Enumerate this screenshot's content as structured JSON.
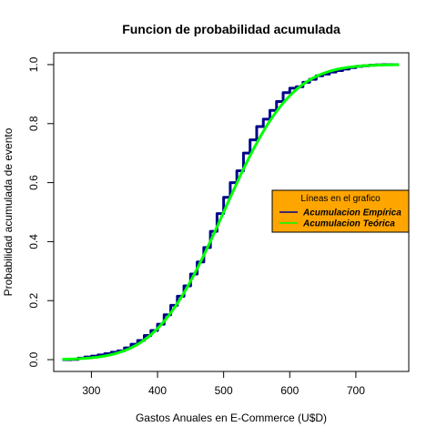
{
  "chart_data": {
    "type": "line",
    "title": "Funcion de probabilidad acumulada",
    "xlabel": "Gastos Anuales en E-Commerce (U$D)",
    "ylabel": "Probabilidad acumulada de evento",
    "xlim": [
      243,
      780
    ],
    "ylim": [
      -0.04,
      1.04
    ],
    "x_ticks": [
      300,
      400,
      500,
      600,
      700
    ],
    "y_ticks": [
      0.0,
      0.2,
      0.4,
      0.6,
      0.8,
      1.0
    ],
    "x_tick_labels": [
      "300",
      "400",
      "500",
      "600",
      "700"
    ],
    "y_tick_labels": [
      "0.0",
      "0.2",
      "0.4",
      "0.6",
      "0.8",
      "1.0"
    ],
    "grid": false,
    "legend": {
      "title": "Líneas en el grafico",
      "position": "right",
      "background": "#ffa500",
      "entries": [
        "Acumulacion Empírica",
        "Acumulacion Teórica"
      ]
    },
    "series": [
      {
        "name": "Acumulacion Empírica",
        "color": "#00008b",
        "x": [
          256,
          270,
          280,
          290,
          300,
          310,
          320,
          330,
          340,
          350,
          360,
          370,
          380,
          390,
          400,
          410,
          420,
          430,
          440,
          450,
          460,
          470,
          480,
          490,
          500,
          510,
          520,
          530,
          540,
          550,
          560,
          570,
          580,
          590,
          600,
          610,
          620,
          630,
          640,
          650,
          660,
          670,
          680,
          690,
          700,
          710,
          720,
          730,
          740,
          765
        ],
        "y": [
          0.0,
          0.001,
          0.005,
          0.009,
          0.012,
          0.016,
          0.02,
          0.025,
          0.03,
          0.04,
          0.052,
          0.065,
          0.082,
          0.099,
          0.12,
          0.152,
          0.184,
          0.215,
          0.25,
          0.29,
          0.331,
          0.38,
          0.435,
          0.495,
          0.55,
          0.6,
          0.64,
          0.7,
          0.745,
          0.79,
          0.815,
          0.845,
          0.875,
          0.905,
          0.92,
          0.925,
          0.94,
          0.95,
          0.962,
          0.968,
          0.975,
          0.98,
          0.985,
          0.99,
          0.994,
          0.996,
          0.998,
          0.999,
          1.0,
          1.0
        ]
      },
      {
        "name": "Acumulacion Teórica",
        "color": "#00ff00",
        "mean": 500,
        "sd": 80,
        "x_range": [
          256,
          765
        ]
      }
    ]
  }
}
